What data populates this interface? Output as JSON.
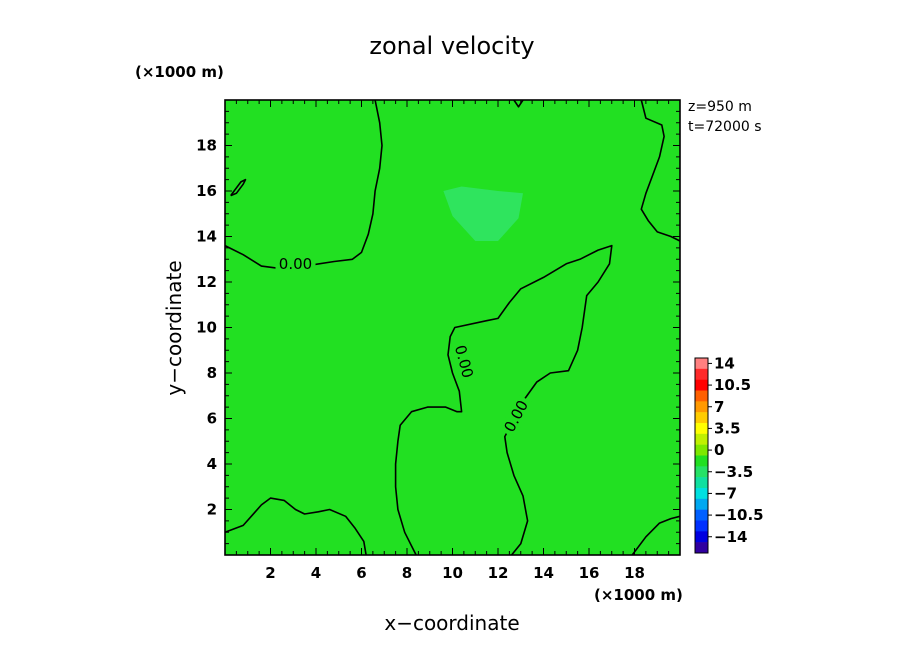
{
  "chart_data": {
    "type": "heatmap",
    "title": "zonal velocity",
    "xlabel": "x−coordinate",
    "ylabel": "y−coordinate",
    "x_unit": "(×1000 m)",
    "y_unit": "(×1000 m)",
    "xlim": [
      0,
      20
    ],
    "ylim": [
      0,
      20
    ],
    "x_ticks": [
      2,
      4,
      6,
      8,
      10,
      12,
      14,
      16,
      18
    ],
    "y_ticks": [
      2,
      4,
      6,
      8,
      10,
      12,
      14,
      16,
      18
    ],
    "x_tick_labels": [
      "2",
      "4",
      "6",
      "8",
      "10",
      "12",
      "14",
      "16",
      "18"
    ],
    "y_tick_labels": [
      "2",
      "4",
      "6",
      "8",
      "10",
      "12",
      "14",
      "16",
      "18"
    ],
    "annotations": [
      "z=950 m",
      "t=72000 s"
    ],
    "background_fill": "#22e022",
    "negative_patch_fill": "#2fe45e",
    "negative_patch": [
      [
        9.6,
        16.0
      ],
      [
        10.4,
        16.2
      ],
      [
        12.0,
        16.0
      ],
      [
        13.1,
        15.9
      ],
      [
        12.9,
        14.8
      ],
      [
        12.0,
        13.8
      ],
      [
        11.0,
        13.8
      ],
      [
        10.0,
        14.9
      ]
    ],
    "contour_level": 0.0,
    "contour_labels": [
      {
        "text": "0.00",
        "x": 3.1,
        "y": 12.8,
        "angle": 0
      },
      {
        "text": "0.00",
        "x": 10.5,
        "y": 8.5,
        "angle": 75
      },
      {
        "text": "0.00",
        "x": 12.8,
        "y": 6.1,
        "angle": -62
      }
    ],
    "contours": [
      [
        [
          0.0,
          13.6
        ],
        [
          0.8,
          13.2
        ],
        [
          1.6,
          12.7
        ],
        [
          2.4,
          12.6
        ],
        [
          3.5,
          12.7
        ],
        [
          4.8,
          12.9
        ],
        [
          5.6,
          13.0
        ],
        [
          6.0,
          13.3
        ],
        [
          6.3,
          14.1
        ],
        [
          6.5,
          15.0
        ],
        [
          6.6,
          16.0
        ],
        [
          6.8,
          17.0
        ],
        [
          6.9,
          18.0
        ],
        [
          6.8,
          19.0
        ],
        [
          6.6,
          20.0
        ]
      ],
      [
        [
          0.25,
          15.8
        ],
        [
          0.5,
          15.9
        ],
        [
          0.8,
          16.3
        ],
        [
          0.9,
          16.5
        ],
        [
          0.7,
          16.4
        ],
        [
          0.4,
          16.0
        ],
        [
          0.25,
          15.8
        ]
      ],
      [
        [
          12.7,
          20.0
        ],
        [
          12.9,
          19.7
        ],
        [
          13.1,
          20.0
        ]
      ],
      [
        [
          18.3,
          20.0
        ],
        [
          18.5,
          19.2
        ],
        [
          19.2,
          18.9
        ],
        [
          19.3,
          18.4
        ],
        [
          19.1,
          17.5
        ],
        [
          18.8,
          16.7
        ],
        [
          18.5,
          15.9
        ],
        [
          18.3,
          15.2
        ],
        [
          18.6,
          14.7
        ],
        [
          19.0,
          14.2
        ],
        [
          19.6,
          14.0
        ],
        [
          20.0,
          13.8
        ]
      ],
      [
        [
          8.4,
          0.0
        ],
        [
          7.9,
          1.0
        ],
        [
          7.6,
          2.0
        ],
        [
          7.5,
          3.0
        ],
        [
          7.5,
          4.0
        ],
        [
          7.6,
          5.0
        ],
        [
          7.7,
          5.7
        ],
        [
          8.2,
          6.3
        ],
        [
          8.9,
          6.5
        ],
        [
          9.7,
          6.5
        ],
        [
          10.2,
          6.3
        ],
        [
          10.4,
          6.3
        ],
        [
          10.3,
          7.2
        ],
        [
          10.0,
          8.0
        ],
        [
          9.8,
          8.8
        ],
        [
          9.9,
          9.6
        ],
        [
          10.1,
          10.0
        ],
        [
          11.5,
          10.3
        ],
        [
          12.0,
          10.4
        ],
        [
          12.5,
          11.1
        ],
        [
          13.0,
          11.7
        ],
        [
          14.0,
          12.2
        ],
        [
          15.0,
          12.8
        ],
        [
          15.6,
          13.0
        ],
        [
          16.4,
          13.4
        ],
        [
          17.0,
          13.6
        ],
        [
          16.9,
          12.8
        ],
        [
          16.4,
          12.0
        ],
        [
          15.9,
          11.4
        ],
        [
          15.7,
          10.0
        ],
        [
          15.5,
          9.0
        ],
        [
          15.1,
          8.1
        ],
        [
          14.3,
          8.0
        ],
        [
          13.7,
          7.6
        ],
        [
          13.2,
          6.9
        ],
        [
          12.6,
          5.8
        ],
        [
          12.3,
          5.2
        ],
        [
          12.4,
          4.5
        ],
        [
          12.7,
          3.5
        ],
        [
          13.1,
          2.6
        ],
        [
          13.3,
          1.5
        ],
        [
          13.0,
          0.5
        ],
        [
          12.6,
          0.0
        ]
      ],
      [
        [
          0.0,
          1.0
        ],
        [
          0.8,
          1.3
        ],
        [
          1.6,
          2.2
        ],
        [
          2.0,
          2.5
        ],
        [
          2.6,
          2.4
        ],
        [
          3.1,
          2.0
        ],
        [
          3.5,
          1.8
        ],
        [
          4.1,
          1.9
        ],
        [
          4.6,
          2.0
        ],
        [
          5.3,
          1.7
        ],
        [
          5.7,
          1.2
        ],
        [
          6.1,
          0.6
        ],
        [
          6.2,
          0.0
        ]
      ],
      [
        [
          17.9,
          0.0
        ],
        [
          18.5,
          0.8
        ],
        [
          19.1,
          1.4
        ],
        [
          19.6,
          1.6
        ],
        [
          20.0,
          1.7
        ]
      ]
    ],
    "colorbar": {
      "labels": [
        "14",
        "10.5",
        "7",
        "3.5",
        "0",
        "−3.5",
        "−7",
        "−10.5",
        "−14"
      ],
      "colors": [
        "#ff8080",
        "#ff2a2a",
        "#ff0000",
        "#ff6000",
        "#ff9900",
        "#ffcc00",
        "#ffff00",
        "#c0f000",
        "#7ee800",
        "#22e022",
        "#26e266",
        "#10e0a0",
        "#00e0e0",
        "#00a8f0",
        "#0060ff",
        "#0030ff",
        "#0000e0",
        "#3000a0"
      ],
      "range": [
        -14,
        14
      ]
    }
  }
}
